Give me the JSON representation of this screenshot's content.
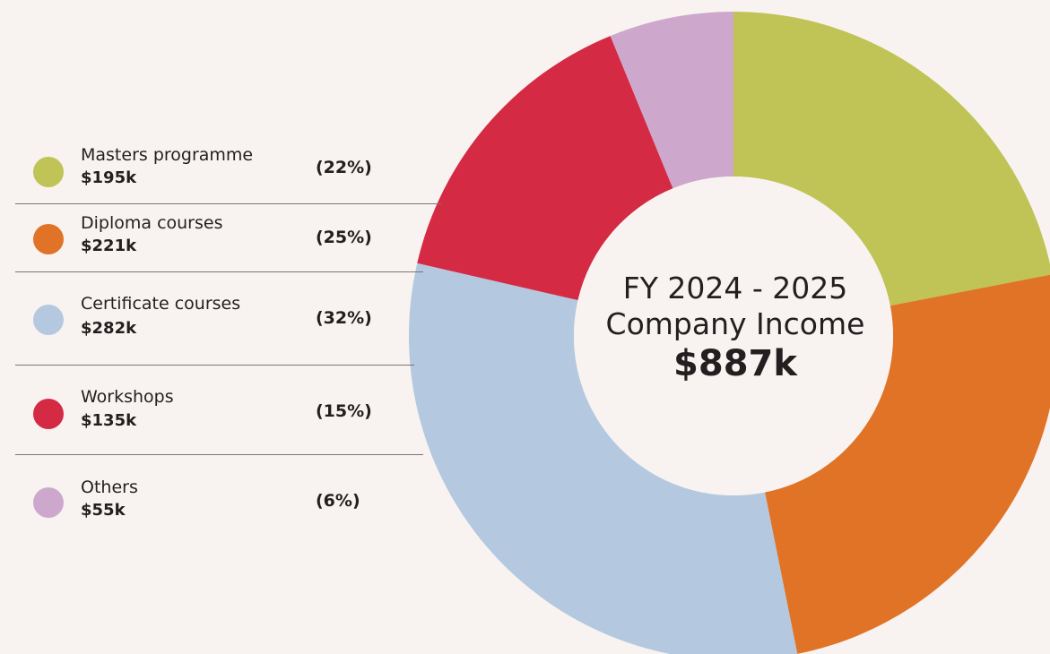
{
  "center": {
    "line1": "FY 2024 - 2025",
    "line2": "Company Income",
    "total": "$887k"
  },
  "chart_data": {
    "type": "pie",
    "categories": [
      "Masters programme",
      "Diploma courses",
      "Certificate courses",
      "Workshops",
      "Others"
    ],
    "values": [
      195,
      221,
      282,
      135,
      55
    ],
    "value_labels": [
      "$195k",
      "$221k",
      "$282k",
      "$135k",
      "$55k"
    ],
    "percent_labels": [
      "(22%)",
      "(25%)",
      "(32%)",
      "(15%)",
      "(6%)"
    ],
    "colors": [
      "#c0c355",
      "#e07326",
      "#b4c8df",
      "#d52a43",
      "#cda8cc"
    ],
    "legend_position": "left",
    "style": "donut"
  }
}
